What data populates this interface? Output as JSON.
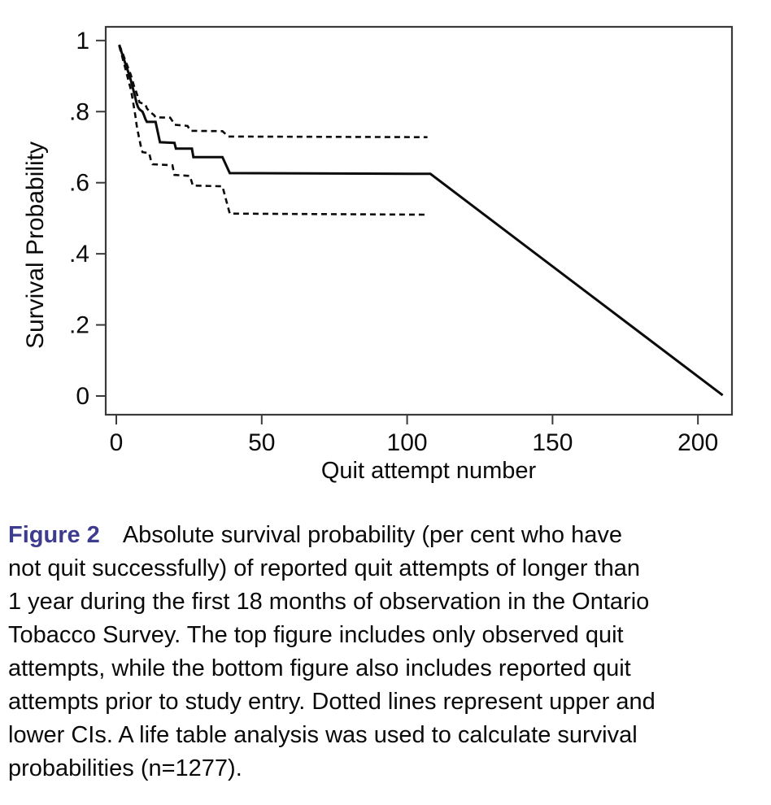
{
  "caption": {
    "label": "Figure 2",
    "label_color": "#3d3c8e",
    "text": "Absolute survival probability (per cent who have\nnot quit successfully) of reported quit attempts of longer than\n1 year during the first 18 months of observation in the Ontario\nTobacco Survey. The top figure includes only observed quit\nattempts, while the bottom figure also includes reported quit\nattempts prior to study entry. Dotted lines represent upper and\nlower CIs. A life table analysis was used to calculate survival\nprobabilities (n=1277)."
  },
  "chart_data": {
    "type": "line",
    "subtype": "life-table-survival-curve",
    "title": "",
    "xlabel": "Quit attempt number",
    "ylabel": "Survival Probability",
    "xlim": [
      -3.64,
      211.7
    ],
    "ylim": [
      -0.0526,
      1.0385
    ],
    "x_ticks": {
      "values": [
        0,
        50,
        100,
        150,
        200
      ],
      "labels": [
        "0",
        "50",
        "100",
        "150",
        "200"
      ]
    },
    "y_ticks": {
      "values": [
        0,
        0.2,
        0.4,
        0.6,
        0.8,
        1
      ],
      "labels": [
        "0",
        ".2",
        ".4",
        ".6",
        ".8",
        "1"
      ]
    },
    "grid": false,
    "legend": "none",
    "colors": {
      "line": "#0b0b0b",
      "axis": "#3a3a3a",
      "text": "#0a0a0a"
    },
    "series": [
      {
        "name": "survival-estimate",
        "style": "solid",
        "points": [
          [
            1,
            0.988
          ],
          [
            1.5,
            0.975
          ],
          [
            2,
            0.962
          ],
          [
            3,
            0.938
          ],
          [
            4,
            0.914
          ],
          [
            5,
            0.888
          ],
          [
            6,
            0.856
          ],
          [
            7,
            0.824
          ],
          [
            7.5,
            0.812
          ],
          [
            8,
            0.806
          ],
          [
            9,
            0.8
          ],
          [
            9.5,
            0.79
          ],
          [
            10,
            0.779
          ],
          [
            10.5,
            0.771
          ],
          [
            13.5,
            0.771
          ],
          [
            15,
            0.714
          ],
          [
            20,
            0.712
          ],
          [
            20.5,
            0.696
          ],
          [
            26,
            0.696
          ],
          [
            26.5,
            0.672
          ],
          [
            36.5,
            0.672
          ],
          [
            39,
            0.627
          ],
          [
            108,
            0.625
          ],
          [
            208.5,
            0.002
          ]
        ]
      },
      {
        "name": "upper-ci",
        "style": "dashed",
        "points": [
          [
            1,
            0.988
          ],
          [
            2,
            0.968
          ],
          [
            3,
            0.946
          ],
          [
            4,
            0.925
          ],
          [
            5,
            0.903
          ],
          [
            6,
            0.874
          ],
          [
            7,
            0.852
          ],
          [
            7.5,
            0.838
          ],
          [
            8,
            0.826
          ],
          [
            10,
            0.82
          ],
          [
            10.5,
            0.809
          ],
          [
            11.5,
            0.8
          ],
          [
            13,
            0.79
          ],
          [
            13.5,
            0.784
          ],
          [
            18.5,
            0.783
          ],
          [
            19.5,
            0.771
          ],
          [
            20,
            0.763
          ],
          [
            24.5,
            0.76
          ],
          [
            25.5,
            0.746
          ],
          [
            36.5,
            0.745
          ],
          [
            38.5,
            0.73
          ],
          [
            107,
            0.728
          ]
        ]
      },
      {
        "name": "lower-ci",
        "style": "dashed",
        "points": [
          [
            1,
            0.985
          ],
          [
            2,
            0.955
          ],
          [
            3,
            0.925
          ],
          [
            4,
            0.893
          ],
          [
            5,
            0.862
          ],
          [
            5.5,
            0.84
          ],
          [
            6,
            0.815
          ],
          [
            6.5,
            0.79
          ],
          [
            7,
            0.762
          ],
          [
            7.5,
            0.74
          ],
          [
            8,
            0.72
          ],
          [
            8.5,
            0.7
          ],
          [
            9,
            0.686
          ],
          [
            11.3,
            0.683
          ],
          [
            12,
            0.66
          ],
          [
            12.5,
            0.652
          ],
          [
            19.3,
            0.649
          ],
          [
            20,
            0.622
          ],
          [
            25.3,
            0.619
          ],
          [
            26.3,
            0.592
          ],
          [
            36.5,
            0.59
          ],
          [
            39,
            0.513
          ],
          [
            106,
            0.51
          ]
        ]
      }
    ]
  }
}
